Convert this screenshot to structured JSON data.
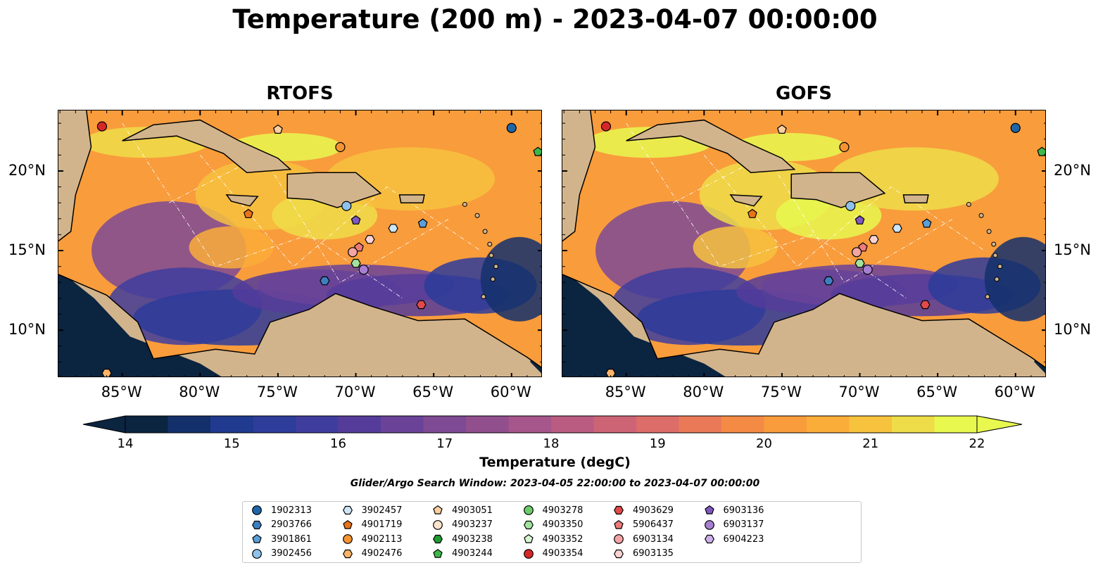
{
  "title": "Temperature (200 m) - 2023-04-07 00:00:00",
  "panels": [
    {
      "title": "RTOFS"
    },
    {
      "title": "GOFS"
    }
  ],
  "lon_ticks": [
    "85°W",
    "80°W",
    "75°W",
    "70°W",
    "65°W",
    "60°W"
  ],
  "lat_ticks": [
    "20°N",
    "15°N",
    "10°N"
  ],
  "colorbar": {
    "label": "Temperature (degC)",
    "min": 14,
    "max": 22,
    "ticks": [
      "14",
      "15",
      "16",
      "17",
      "18",
      "19",
      "20",
      "21",
      "22"
    ],
    "colors": [
      "#0b2440",
      "#14306b",
      "#1f3a8e",
      "#2e3c9a",
      "#3f3d9d",
      "#553c9a",
      "#6a4399",
      "#7e4a94",
      "#914f8e",
      "#a6568a",
      "#ba5c82",
      "#cc6475",
      "#dc6d68",
      "#ea7a57",
      "#f48b45",
      "#f99c3c",
      "#fbad3a",
      "#f7c23e",
      "#eedd48",
      "#e8f84f"
    ]
  },
  "search_window": "Glider/Argo Search Window: 2023-04-05 22:00:00 to 2023-04-07 00:00:00",
  "legend": [
    {
      "label": "1902313",
      "marker": "circle",
      "color": "#1f66a8"
    },
    {
      "label": "2903766",
      "marker": "hexagon",
      "color": "#3d7fbf"
    },
    {
      "label": "3901861",
      "marker": "pentagon",
      "color": "#5b9fd8"
    },
    {
      "label": "3902456",
      "marker": "circle",
      "color": "#8ec2ec"
    },
    {
      "label": "3902457",
      "marker": "hexagon",
      "color": "#cfe6f8"
    },
    {
      "label": "4901719",
      "marker": "pentagon",
      "color": "#e8731a"
    },
    {
      "label": "4902113",
      "marker": "circle",
      "color": "#f59331"
    },
    {
      "label": "4902476",
      "marker": "hexagon",
      "color": "#fbb46a"
    },
    {
      "label": "4903051",
      "marker": "pentagon",
      "color": "#fbd0a0"
    },
    {
      "label": "4903237",
      "marker": "circle",
      "color": "#fde3cc"
    },
    {
      "label": "4903238",
      "marker": "hexagon",
      "color": "#1e9b31"
    },
    {
      "label": "4903244",
      "marker": "pentagon",
      "color": "#3db84a"
    },
    {
      "label": "4903278",
      "marker": "circle",
      "color": "#6ccc6a"
    },
    {
      "label": "4903350",
      "marker": "hexagon",
      "color": "#a1e39d"
    },
    {
      "label": "4903352",
      "marker": "pentagon",
      "color": "#d6f6d0"
    },
    {
      "label": "4903354",
      "marker": "circle",
      "color": "#d62728"
    },
    {
      "label": "4903629",
      "marker": "hexagon",
      "color": "#e04a4a"
    },
    {
      "label": "5906437",
      "marker": "pentagon",
      "color": "#ee7a7a"
    },
    {
      "label": "6903134",
      "marker": "circle",
      "color": "#f3a4a4"
    },
    {
      "label": "6903135",
      "marker": "hexagon",
      "color": "#fbd3d3"
    },
    {
      "label": "6903136",
      "marker": "pentagon",
      "color": "#8058c0"
    },
    {
      "label": "6903137",
      "marker": "circle",
      "color": "#a77fd2"
    },
    {
      "label": "6904223",
      "marker": "hexagon",
      "color": "#cdb0ea"
    }
  ],
  "floats": [
    {
      "id": "4903354",
      "lon": -86.3,
      "lat": 22.8
    },
    {
      "id": "1902313",
      "lon": -60.0,
      "lat": 22.7
    },
    {
      "id": "4903244",
      "lon": -58.3,
      "lat": 21.2
    },
    {
      "id": "4903051",
      "lon": -75.0,
      "lat": 22.6
    },
    {
      "id": "4902113",
      "lon": -71.0,
      "lat": 21.5
    },
    {
      "id": "3902456",
      "lon": -70.6,
      "lat": 17.8
    },
    {
      "id": "4901719",
      "lon": -76.9,
      "lat": 17.3
    },
    {
      "id": "6903136",
      "lon": -70.0,
      "lat": 16.9
    },
    {
      "id": "3902457",
      "lon": -67.6,
      "lat": 16.4
    },
    {
      "id": "3901861",
      "lon": -65.7,
      "lat": 16.7
    },
    {
      "id": "6903135",
      "lon": -69.1,
      "lat": 15.7
    },
    {
      "id": "5906437",
      "lon": -69.8,
      "lat": 15.2
    },
    {
      "id": "6903134",
      "lon": -70.2,
      "lat": 14.9
    },
    {
      "id": "4903350",
      "lon": -70.0,
      "lat": 14.2
    },
    {
      "id": "6903137",
      "lon": -69.5,
      "lat": 13.8
    },
    {
      "id": "2903766",
      "lon": -72.0,
      "lat": 13.1
    },
    {
      "id": "4903629",
      "lon": -65.8,
      "lat": 11.6
    },
    {
      "id": "4902476",
      "lon": -86.0,
      "lat": 7.3
    }
  ]
}
